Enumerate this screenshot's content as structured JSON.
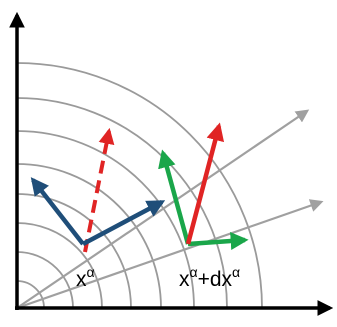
{
  "labels": {
    "point_a": {
      "base": "x",
      "sup": "α"
    },
    "point_b": {
      "base": "x",
      "sup": "α",
      "plus": "+dx",
      "sup2": "α"
    }
  },
  "colors": {
    "axes": "#000000",
    "arcs": "#9a9a9a",
    "rays": "#a0a0a0",
    "basis_vectors": "#1f4e79",
    "transported_vectors": "#1aa64a",
    "reference_vector": "#e02424"
  },
  "icons": {
    "axis_arrowheads": "arrowhead",
    "vector_arrowheads": "arrowhead"
  }
}
